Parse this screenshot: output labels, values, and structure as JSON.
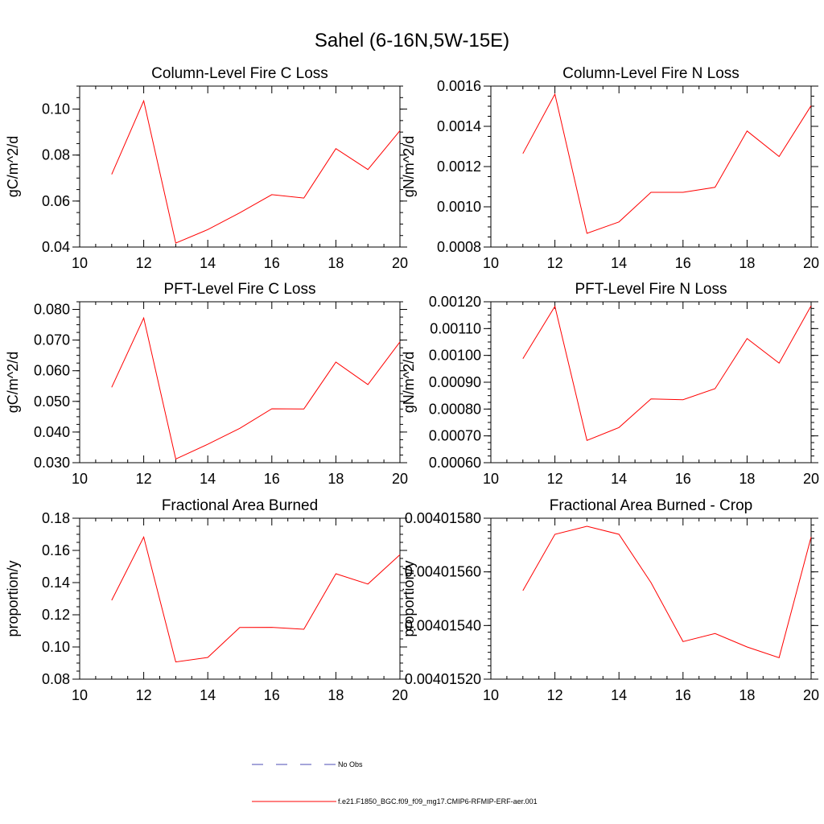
{
  "page_title": "Sahel (6-16N,5W-15E)",
  "colors": {
    "series": "#ff0000",
    "obs": "#4b4bb4",
    "axis": "#000000"
  },
  "legend": {
    "obs_label": "No Obs",
    "model_label": "f.e21.F1850_BGC.f09_f09_mg17.CMIP6-RFMIP-ERF-aer.001"
  },
  "chart_data": [
    {
      "type": "line",
      "title": "Column-Level Fire C Loss",
      "ylabel": "gC/m^2/d",
      "xlim": [
        10,
        20
      ],
      "ylim": [
        0.04,
        0.11
      ],
      "xticks": [
        10,
        12,
        14,
        16,
        18,
        20
      ],
      "xticklabels": [
        "10",
        "12",
        "14",
        "16",
        "18",
        "20"
      ],
      "yticks": [
        0.04,
        0.06,
        0.08,
        0.1
      ],
      "yticklabels": [
        "0.04",
        "0.06",
        "0.08",
        "0.10"
      ],
      "yminor": 0.005,
      "x": [
        11,
        12,
        13,
        14,
        15,
        16,
        17,
        18,
        19,
        20
      ],
      "series": [
        {
          "name": "f.e21.F1850_BGC.f09_f09_mg17.CMIP6-RFMIP-ERF-aer.001",
          "values": [
            0.0716,
            0.1036,
            0.0417,
            0.0476,
            0.0549,
            0.0628,
            0.0613,
            0.0828,
            0.0737,
            0.0906
          ]
        }
      ]
    },
    {
      "type": "line",
      "title": "Column-Level Fire N Loss",
      "ylabel": "gN/m^2/d",
      "xlim": [
        10,
        20
      ],
      "ylim": [
        0.0008,
        0.0016
      ],
      "xticks": [
        10,
        12,
        14,
        16,
        18,
        20
      ],
      "xticklabels": [
        "10",
        "12",
        "14",
        "16",
        "18",
        "20"
      ],
      "yticks": [
        0.0008,
        0.001,
        0.0012,
        0.0014,
        0.0016
      ],
      "yticklabels": [
        "0.0008",
        "0.0010",
        "0.0012",
        "0.0014",
        "0.0016"
      ],
      "yminor": 5e-05,
      "x": [
        11,
        12,
        13,
        14,
        15,
        16,
        17,
        18,
        19,
        20
      ],
      "series": [
        {
          "name": "f.e21.F1850_BGC.f09_f09_mg17.CMIP6-RFMIP-ERF-aer.001",
          "values": [
            0.001265,
            0.00156,
            0.000868,
            0.000925,
            0.001072,
            0.001072,
            0.001097,
            0.001377,
            0.00125,
            0.001503
          ]
        }
      ]
    },
    {
      "type": "line",
      "title": "PFT-Level Fire C Loss",
      "ylabel": "gC/m^2/d",
      "xlim": [
        10,
        20
      ],
      "ylim": [
        0.03,
        0.0825
      ],
      "xticks": [
        10,
        12,
        14,
        16,
        18,
        20
      ],
      "xticklabels": [
        "10",
        "12",
        "14",
        "16",
        "18",
        "20"
      ],
      "yticks": [
        0.03,
        0.04,
        0.05,
        0.06,
        0.07,
        0.08
      ],
      "yticklabels": [
        "0.030",
        "0.040",
        "0.050",
        "0.060",
        "0.070",
        "0.080"
      ],
      "yminor": 0.0025,
      "x": [
        11,
        12,
        13,
        14,
        15,
        16,
        17,
        18,
        19,
        20
      ],
      "series": [
        {
          "name": "f.e21.F1850_BGC.f09_f09_mg17.CMIP6-RFMIP-ERF-aer.001",
          "values": [
            0.0546,
            0.0772,
            0.0312,
            0.036,
            0.0412,
            0.0476,
            0.0475,
            0.0628,
            0.0555,
            0.0694
          ]
        }
      ]
    },
    {
      "type": "line",
      "title": "PFT-Level Fire N Loss",
      "ylabel": "gN/m^2/d",
      "xlim": [
        10,
        20
      ],
      "ylim": [
        0.0006,
        0.0012
      ],
      "xticks": [
        10,
        12,
        14,
        16,
        18,
        20
      ],
      "xticklabels": [
        "10",
        "12",
        "14",
        "16",
        "18",
        "20"
      ],
      "yticks": [
        0.0006,
        0.0007,
        0.0008,
        0.0009,
        0.001,
        0.0011,
        0.0012
      ],
      "yticklabels": [
        "0.00060",
        "0.00070",
        "0.00080",
        "0.00090",
        "0.00100",
        "0.00110",
        "0.00120"
      ],
      "yminor": 2.5e-05,
      "x": [
        11,
        12,
        13,
        14,
        15,
        16,
        17,
        18,
        19,
        20
      ],
      "series": [
        {
          "name": "f.e21.F1850_BGC.f09_f09_mg17.CMIP6-RFMIP-ERF-aer.001",
          "values": [
            0.000988,
            0.001183,
            0.000683,
            0.000731,
            0.000838,
            0.000835,
            0.000876,
            0.001063,
            0.000971,
            0.001185
          ]
        }
      ]
    },
    {
      "type": "line",
      "title": "Fractional Area Burned",
      "ylabel": "proportion/y",
      "xlim": [
        10,
        20
      ],
      "ylim": [
        0.08,
        0.18
      ],
      "xticks": [
        10,
        12,
        14,
        16,
        18,
        20
      ],
      "xticklabels": [
        "10",
        "12",
        "14",
        "16",
        "18",
        "20"
      ],
      "yticks": [
        0.08,
        0.1,
        0.12,
        0.14,
        0.16,
        0.18
      ],
      "yticklabels": [
        "0.08",
        "0.10",
        "0.12",
        "0.14",
        "0.16",
        "0.18"
      ],
      "yminor": 0.005,
      "x": [
        11,
        12,
        13,
        14,
        15,
        16,
        17,
        18,
        19,
        20
      ],
      "series": [
        {
          "name": "f.e21.F1850_BGC.f09_f09_mg17.CMIP6-RFMIP-ERF-aer.001",
          "values": [
            0.129,
            0.1683,
            0.0907,
            0.0935,
            0.1121,
            0.1122,
            0.111,
            0.1455,
            0.1391,
            0.1573
          ]
        }
      ]
    },
    {
      "type": "line",
      "title": "Fractional Area Burned - Crop",
      "ylabel": "proportion/y",
      "xlim": [
        10,
        20
      ],
      "ylim": [
        0.0040152,
        0.0040158
      ],
      "xticks": [
        10,
        12,
        14,
        16,
        18,
        20
      ],
      "xticklabels": [
        "10",
        "12",
        "14",
        "16",
        "18",
        "20"
      ],
      "yticks": [
        0.0040152,
        0.0040154,
        0.0040156,
        0.0040158
      ],
      "yticklabels": [
        "0.00401520",
        "0.00401540",
        "0.00401560",
        "0.00401580"
      ],
      "yminor": 2.5e-08,
      "x": [
        11,
        12,
        13,
        14,
        15,
        16,
        17,
        18,
        19,
        20
      ],
      "series": [
        {
          "name": "f.e21.F1850_BGC.f09_f09_mg17.CMIP6-RFMIP-ERF-aer.001",
          "values": [
            0.00401553,
            0.00401574,
            0.00401577,
            0.00401574,
            0.00401556,
            0.00401534,
            0.00401537,
            0.00401532,
            0.00401528,
            0.00401573
          ]
        }
      ]
    }
  ]
}
